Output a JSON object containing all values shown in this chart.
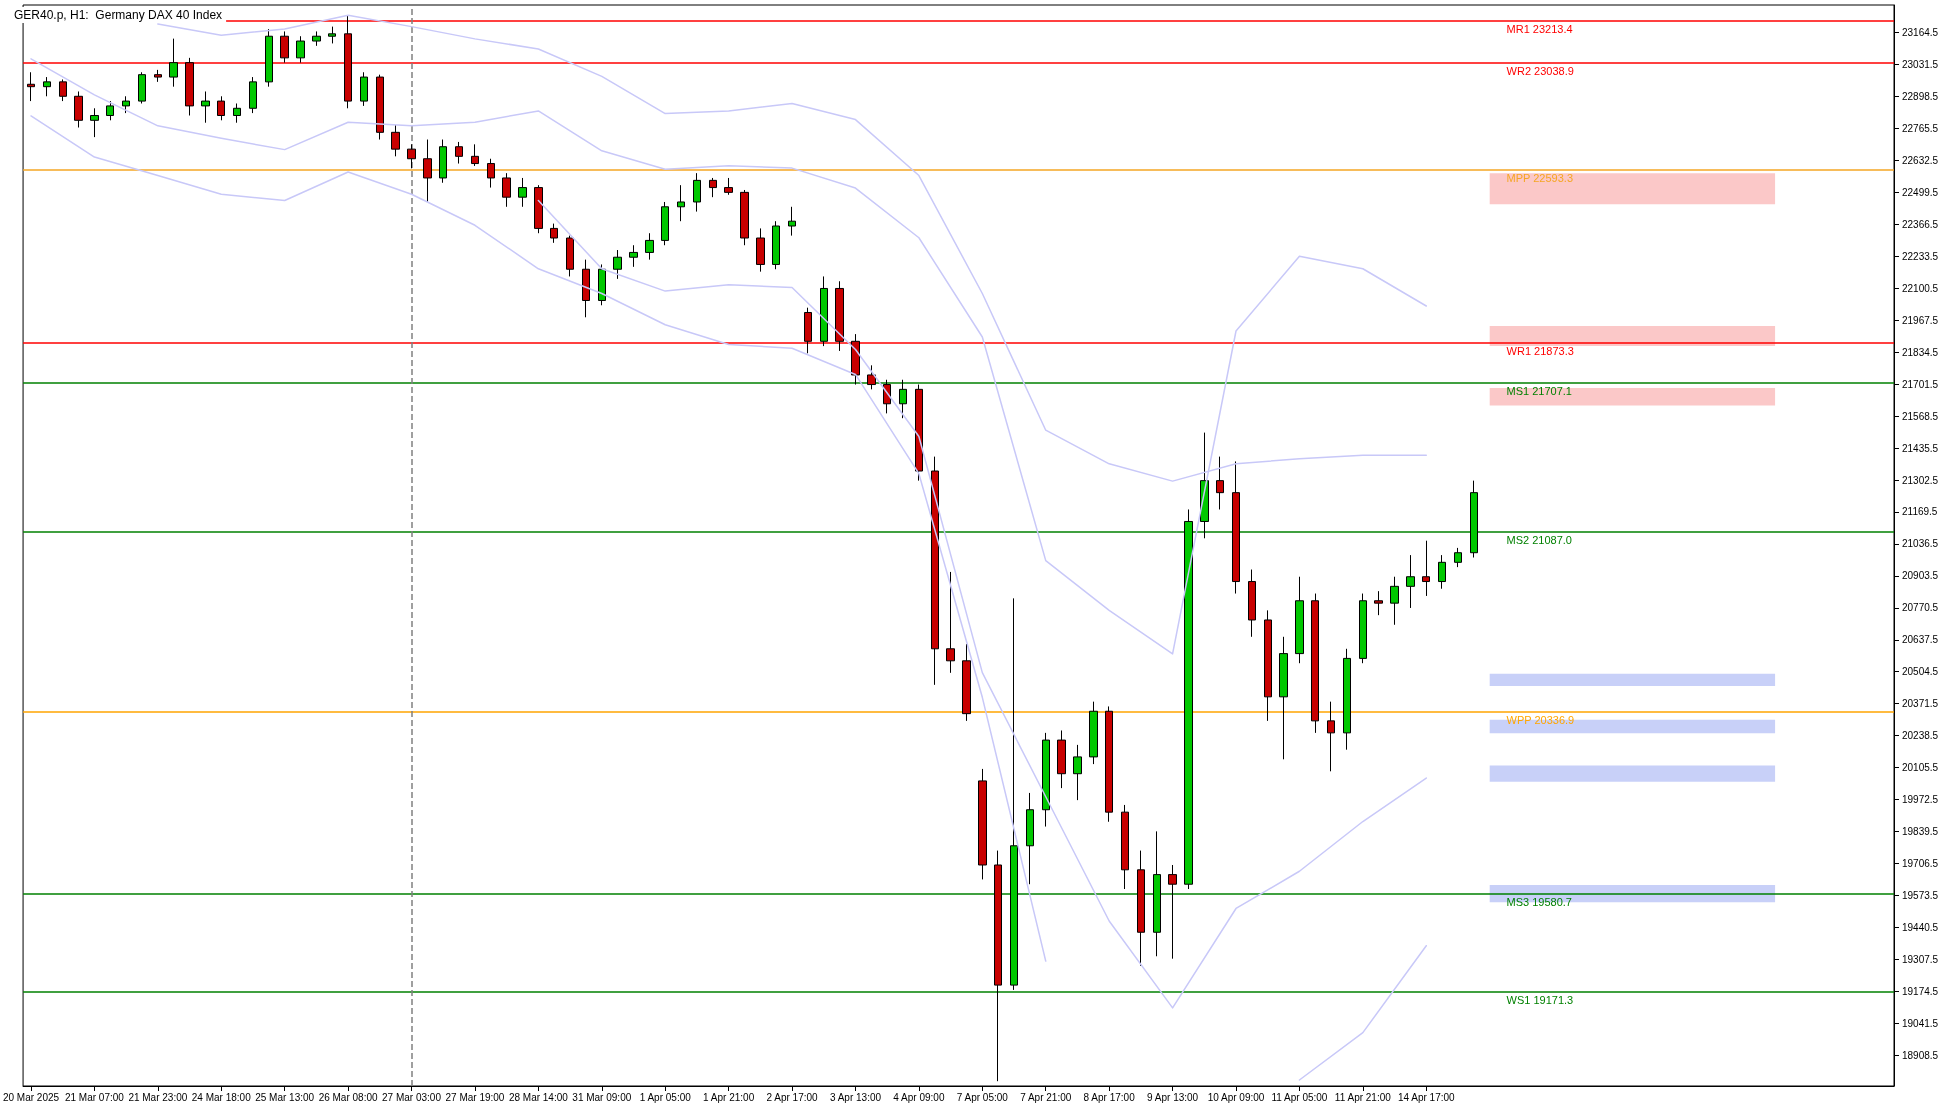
{
  "chart_data": {
    "type": "candlestick",
    "title": "GER40.p, H1:  Germany DAX 40 Index",
    "categories": [
      "20 Mar 2025",
      null,
      null,
      null,
      "21 Mar 07:00",
      null,
      null,
      null,
      "21 Mar 23:00",
      null,
      null,
      null,
      "24 Mar 18:00",
      null,
      null,
      null,
      "25 Mar 13:00",
      null,
      null,
      null,
      "26 Mar 08:00",
      null,
      null,
      null,
      "27 Mar 03:00",
      null,
      null,
      null,
      "27 Mar 19:00",
      null,
      null,
      null,
      "28 Mar 14:00",
      null,
      null,
      null,
      "31 Mar 09:00",
      null,
      null,
      null,
      "1 Apr 05:00",
      null,
      null,
      null,
      "1 Apr 21:00",
      null,
      null,
      null,
      "2 Apr 17:00",
      null,
      null,
      null,
      "3 Apr 13:00",
      null,
      null,
      null,
      "4 Apr 09:00",
      null,
      null,
      null,
      "7 Apr 05:00",
      null,
      null,
      null,
      "7 Apr 21:00",
      null,
      null,
      null,
      "8 Apr 17:00",
      null,
      null,
      null,
      "9 Apr 13:00",
      null,
      null,
      null,
      "10 Apr 09:00",
      null,
      null,
      null,
      "11 Apr 05:00",
      null,
      null,
      null,
      "11 Apr 21:00",
      null,
      null,
      null,
      "14 Apr 17:00",
      null,
      null,
      null,
      null,
      null,
      null,
      null,
      null,
      null,
      null,
      null,
      null,
      null,
      null,
      null,
      null,
      null,
      null,
      null,
      null,
      null,
      null,
      null,
      null,
      null,
      null,
      null,
      null,
      null
    ],
    "ohlc": [
      [
        22950,
        23000,
        22880,
        22940
      ],
      [
        22940,
        22980,
        22900,
        22960
      ],
      [
        22960,
        22970,
        22880,
        22900
      ],
      [
        22900,
        22920,
        22770,
        22800
      ],
      [
        22800,
        22850,
        22730,
        22820
      ],
      [
        22820,
        22880,
        22800,
        22860
      ],
      [
        22860,
        22900,
        22830,
        22880
      ],
      [
        22880,
        23000,
        22870,
        22990
      ],
      [
        22990,
        23010,
        22960,
        22980
      ],
      [
        22980,
        23140,
        22940,
        23040
      ],
      [
        23040,
        23060,
        22820,
        22860
      ],
      [
        22860,
        22920,
        22790,
        22880
      ],
      [
        22880,
        22900,
        22800,
        22820
      ],
      [
        22820,
        22870,
        22790,
        22850
      ],
      [
        22850,
        22980,
        22830,
        22960
      ],
      [
        22960,
        23180,
        22940,
        23150
      ],
      [
        23150,
        23170,
        23040,
        23060
      ],
      [
        23060,
        23150,
        23040,
        23130
      ],
      [
        23130,
        23170,
        23110,
        23150
      ],
      [
        23150,
        23190,
        23120,
        23160
      ],
      [
        23160,
        23235,
        22850,
        22880
      ],
      [
        22880,
        23000,
        22860,
        22980
      ],
      [
        22980,
        22990,
        22720,
        22750
      ],
      [
        22750,
        22780,
        22650,
        22680
      ],
      [
        22680,
        22700,
        22600,
        22640
      ],
      [
        22640,
        22720,
        22460,
        22560
      ],
      [
        22560,
        22720,
        22540,
        22690
      ],
      [
        22690,
        22710,
        22620,
        22650
      ],
      [
        22650,
        22700,
        22610,
        22620
      ],
      [
        22620,
        22640,
        22520,
        22560
      ],
      [
        22560,
        22580,
        22440,
        22480
      ],
      [
        22480,
        22560,
        22440,
        22520
      ],
      [
        22520,
        22530,
        22330,
        22350
      ],
      [
        22350,
        22370,
        22290,
        22310
      ],
      [
        22310,
        22320,
        22150,
        22180
      ],
      [
        22180,
        22220,
        21980,
        22050
      ],
      [
        22050,
        22200,
        22030,
        22180
      ],
      [
        22180,
        22260,
        22140,
        22230
      ],
      [
        22230,
        22280,
        22190,
        22250
      ],
      [
        22250,
        22330,
        22220,
        22300
      ],
      [
        22300,
        22460,
        22280,
        22440
      ],
      [
        22440,
        22530,
        22380,
        22460
      ],
      [
        22460,
        22580,
        22420,
        22550
      ],
      [
        22550,
        22560,
        22480,
        22520
      ],
      [
        22520,
        22560,
        22490,
        22500
      ],
      [
        22500,
        22510,
        22280,
        22310
      ],
      [
        22310,
        22350,
        22170,
        22200
      ],
      [
        22200,
        22380,
        22180,
        22360
      ],
      [
        22360,
        22440,
        22320,
        22380
      ],
      [
        22000,
        22020,
        21830,
        21880
      ],
      [
        21880,
        22150,
        21860,
        22100
      ],
      [
        22100,
        22130,
        21840,
        21880
      ],
      [
        21880,
        21910,
        21700,
        21740
      ],
      [
        21740,
        21780,
        21680,
        21700
      ],
      [
        21700,
        21720,
        21580,
        21620
      ],
      [
        21620,
        21720,
        21560,
        21680
      ],
      [
        21680,
        21700,
        21300,
        21340
      ],
      [
        21340,
        21400,
        20450,
        20600
      ],
      [
        20600,
        20920,
        20500,
        20550
      ],
      [
        20550,
        20620,
        20300,
        20330
      ],
      [
        20050,
        20100,
        19640,
        19700
      ],
      [
        19700,
        19760,
        18800,
        19200
      ],
      [
        19200,
        20810,
        19180,
        19780
      ],
      [
        19780,
        20000,
        19620,
        19930
      ],
      [
        19930,
        20250,
        19860,
        20220
      ],
      [
        20220,
        20260,
        20020,
        20080
      ],
      [
        20080,
        20200,
        19970,
        20150
      ],
      [
        20150,
        20380,
        20120,
        20340
      ],
      [
        20340,
        20360,
        19880,
        19920
      ],
      [
        19920,
        19950,
        19600,
        19680
      ],
      [
        19680,
        19760,
        19280,
        19420
      ],
      [
        19420,
        19840,
        19320,
        19660
      ],
      [
        19660,
        19700,
        19310,
        19620
      ],
      [
        19620,
        21180,
        19600,
        21130
      ],
      [
        21130,
        21500,
        21060,
        21300
      ],
      [
        21300,
        21400,
        21180,
        21250
      ],
      [
        21250,
        21380,
        20830,
        20880
      ],
      [
        20880,
        20930,
        20650,
        20720
      ],
      [
        20720,
        20760,
        20300,
        20400
      ],
      [
        20400,
        20650,
        20140,
        20580
      ],
      [
        20580,
        20900,
        20540,
        20800
      ],
      [
        20800,
        20830,
        20250,
        20300
      ],
      [
        20300,
        20380,
        20090,
        20250
      ],
      [
        20250,
        20600,
        20180,
        20560
      ],
      [
        20560,
        20830,
        20540,
        20800
      ],
      [
        20800,
        20840,
        20740,
        20790
      ],
      [
        20790,
        20900,
        20700,
        20860
      ],
      [
        20860,
        20990,
        20770,
        20900
      ],
      [
        20900,
        21050,
        20820,
        20880
      ],
      [
        20880,
        20990,
        20850,
        20960
      ],
      [
        20960,
        21020,
        20940,
        21000
      ],
      [
        21000,
        21300,
        20980,
        21250
      ],
      null,
      null,
      null,
      null,
      null,
      null,
      null,
      null,
      null,
      null,
      null,
      null,
      null,
      null,
      null,
      null,
      null,
      null,
      null,
      null,
      null,
      null,
      null,
      null,
      null,
      null
    ],
    "series": [
      {
        "type": "line",
        "color": "#c8c8f8",
        "x": [
          "21 Mar 23:00",
          "24 Mar 18:00",
          "25 Mar 13:00",
          "26 Mar 08:00",
          "27 Mar 03:00",
          "27 Mar 19:00",
          "28 Mar 14:00",
          "31 Mar 09:00",
          "1 Apr 05:00",
          "1 Apr 21:00",
          "2 Apr 17:00",
          "3 Apr 13:00",
          "4 Apr 09:00",
          "7 Apr 05:00",
          "7 Apr 21:00",
          "8 Apr 17:00",
          "9 Apr 13:00",
          "10 Apr 09:00",
          "11 Apr 05:00",
          "11 Apr 21:00",
          "14 Apr 17:00"
        ],
        "values": [
          23201,
          23154,
          23180,
          23237,
          23190,
          23139,
          23097,
          22983,
          22828,
          22839,
          22870,
          22803,
          22570,
          22079,
          21510,
          21370,
          21298,
          21370,
          21391,
          21406,
          21406
        ]
      },
      {
        "type": "line",
        "color": "#c8c8f8",
        "x": [
          "20 Mar 2025",
          "21 Mar 07:00",
          "21 Mar 23:00",
          "24 Mar 18:00",
          "25 Mar 13:00",
          "26 Mar 08:00",
          "27 Mar 03:00",
          "27 Mar 19:00",
          "28 Mar 14:00",
          "31 Mar 09:00",
          "1 Apr 05:00",
          "1 Apr 21:00",
          "2 Apr 17:00",
          "3 Apr 13:00",
          "4 Apr 09:00",
          "7 Apr 05:00",
          "7 Apr 21:00",
          "8 Apr 17:00",
          "9 Apr 13:00",
          "10 Apr 09:00",
          "11 Apr 05:00",
          "11 Apr 21:00",
          "14 Apr 17:00"
        ],
        "values": [
          23056,
          22906,
          22777,
          22725,
          22678,
          22792,
          22777,
          22792,
          22839,
          22673,
          22596,
          22611,
          22601,
          22518,
          22311,
          21898,
          20967,
          20760,
          20579,
          21923,
          22234,
          22182,
          22027
        ]
      },
      {
        "type": "line",
        "color": "#c8c8f8",
        "x": [
          "28 Mar 14:00",
          "31 Mar 09:00",
          "1 Apr 05:00",
          "1 Apr 21:00",
          "2 Apr 17:00",
          "3 Apr 13:00",
          "4 Apr 09:00",
          "7 Apr 05:00",
          "7 Apr 21:00",
          "8 Apr 17:00",
          "9 Apr 13:00",
          "10 Apr 09:00",
          "11 Apr 05:00",
          "11 Apr 21:00",
          "14 Apr 17:00"
        ],
        "values": [
          22466,
          22182,
          22089,
          22115,
          22104,
          21846,
          21484,
          20501,
          19984,
          19467,
          19105,
          19519,
          19674,
          19881,
          20062
        ]
      },
      {
        "type": "line",
        "color": "#c8c8f8",
        "x": [
          "20 Mar 2025",
          "21 Mar 07:00",
          "21 Mar 23:00",
          "24 Mar 18:00",
          "25 Mar 13:00",
          "26 Mar 08:00",
          "27 Mar 03:00",
          "27 Mar 19:00",
          "28 Mar 14:00",
          "31 Mar 09:00",
          "1 Apr 05:00",
          "1 Apr 21:00",
          "2 Apr 17:00",
          "3 Apr 13:00",
          "4 Apr 09:00",
          "7 Apr 05:00",
          "7 Apr 21:00",
          "8 Apr 17:00",
          "9 Apr 13:00",
          "10 Apr 09:00",
          "11 Apr 05:00",
          "11 Apr 21:00",
          "14 Apr 17:00"
        ],
        "values": [
          22818,
          22647,
          22570,
          22492,
          22466,
          22585,
          22492,
          22363,
          22182,
          22079,
          21949,
          21867,
          21851,
          21742,
          21329,
          20398,
          19300,
          null,
          null,
          null,
          18805,
          19002,
          19364
        ]
      }
    ],
    "marker": "none",
    "ylim": [
      18780,
      23280
    ],
    "yticks": [
      18908.5,
      19041.5,
      19174.5,
      19307.5,
      19440.5,
      19573.5,
      19706.5,
      19839.5,
      19972.5,
      20105.5,
      20238.5,
      20371.5,
      20504.5,
      20637.5,
      20770.5,
      20903.5,
      21036.5,
      21169.5,
      21302.5,
      21435.5,
      21568.5,
      21701.5,
      21834.5,
      21967.5,
      22100.5,
      22233.5,
      22366.5,
      22499.5,
      22632.5,
      22765.5,
      22898.5,
      23031.5,
      23164.5
    ],
    "ref_lines": [
      {
        "axis": "y",
        "value": 23213.4,
        "label": "MR1 23213.4",
        "color": "#ff0000"
      },
      {
        "axis": "y",
        "value": 23038.9,
        "label": "WR2 23038.9",
        "color": "#ff0000"
      },
      {
        "axis": "y",
        "value": 22593.3,
        "label": "MPP 22593.3",
        "color": "#f5a623"
      },
      {
        "axis": "y",
        "value": 21873.3,
        "label": "WR1 21873.3",
        "color": "#ff0000"
      },
      {
        "axis": "y",
        "value": 21707.1,
        "label": "MS1 21707.1",
        "color": "#008000"
      },
      {
        "axis": "y",
        "value": 21087.0,
        "label": "MS2 21087.0",
        "color": "#008000"
      },
      {
        "axis": "y",
        "value": 20336.9,
        "label": "WPP 20336.9",
        "color": "#ffa500"
      },
      {
        "axis": "y",
        "value": 19580.7,
        "label": "MS3 19580.7",
        "color": "#008000"
      },
      {
        "axis": "y",
        "value": 19171.3,
        "label": "WS1 19171.3",
        "color": "#008000"
      },
      {
        "axis": "x",
        "value": "27 Mar 03:00",
        "color": "#808080",
        "line_style": "dashed"
      }
    ],
    "bands": [
      {
        "axis": "y",
        "from": 22451,
        "to": 22580,
        "color": "#fbc8c8"
      },
      {
        "axis": "y",
        "from": 21861,
        "to": 21944,
        "color": "#fbc8c8"
      },
      {
        "axis": "y",
        "from": 21613,
        "to": 21686,
        "color": "#fbc8c8"
      },
      {
        "axis": "y",
        "from": 20445,
        "to": 20496,
        "color": "#c8d0f8"
      },
      {
        "axis": "y",
        "from": 20248,
        "to": 20305,
        "color": "#c8d0f8"
      },
      {
        "axis": "y",
        "from": 20047,
        "to": 20114,
        "color": "#c8d0f8"
      },
      {
        "axis": "y",
        "from": 19545,
        "to": 19617,
        "color": "#c8d0f8"
      }
    ],
    "grid": false
  }
}
